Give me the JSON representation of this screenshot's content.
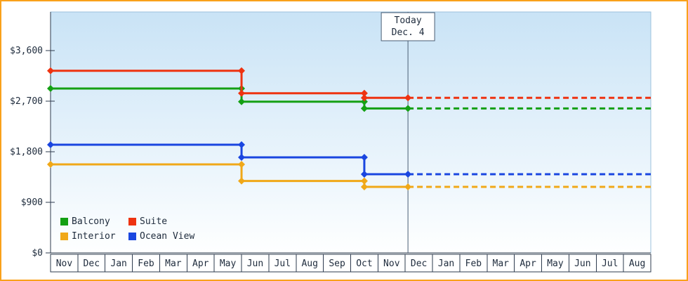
{
  "chart_data": {
    "type": "line",
    "title": "",
    "x_months": [
      "Nov",
      "Dec",
      "Jan",
      "Feb",
      "Mar",
      "Apr",
      "May",
      "Jun",
      "Jul",
      "Aug",
      "Sep",
      "Oct",
      "Nov",
      "Dec",
      "Jan",
      "Feb",
      "Mar",
      "Apr",
      "May",
      "Jun",
      "Jul",
      "Aug"
    ],
    "ylim": [
      0,
      3600
    ],
    "yticks": [
      {
        "value": 0,
        "label": "$0"
      },
      {
        "value": 900,
        "label": "$900"
      },
      {
        "value": 1800,
        "label": "$1,800"
      },
      {
        "value": 2700,
        "label": "$2,700"
      },
      {
        "value": 3600,
        "label": "$3,600"
      }
    ],
    "today": {
      "line1": "Today",
      "line2": "Dec. 4",
      "month_index": 13.1
    },
    "series": [
      {
        "name": "Balcony",
        "color": "#14A014",
        "points": [
          [
            0,
            2925
          ],
          [
            7,
            2925
          ],
          [
            7,
            2690
          ],
          [
            11.5,
            2690
          ],
          [
            11.5,
            2570
          ],
          [
            13.1,
            2570
          ]
        ],
        "forecast_price": 2570
      },
      {
        "name": "Suite",
        "color": "#EE3311",
        "points": [
          [
            0,
            3240
          ],
          [
            7,
            3240
          ],
          [
            7,
            2840
          ],
          [
            11.5,
            2840
          ],
          [
            11.5,
            2760
          ],
          [
            13.1,
            2760
          ]
        ],
        "forecast_price": 2760
      },
      {
        "name": "Interior",
        "color": "#F0A818",
        "points": [
          [
            0,
            1575
          ],
          [
            7,
            1575
          ],
          [
            7,
            1280
          ],
          [
            11.5,
            1280
          ],
          [
            11.5,
            1175
          ],
          [
            13.1,
            1175
          ]
        ],
        "forecast_price": 1175
      },
      {
        "name": "Ocean View",
        "color": "#1A46E0",
        "points": [
          [
            0,
            1925
          ],
          [
            7,
            1925
          ],
          [
            7,
            1700
          ],
          [
            11.5,
            1700
          ],
          [
            11.5,
            1400
          ],
          [
            13.1,
            1400
          ]
        ],
        "forecast_price": 1400
      }
    ],
    "legend_position": "bottom-left-inside",
    "grid": false
  },
  "colors": {
    "frame_border": "#F9A11B",
    "plot_top": "#C9E3F6",
    "plot_bottom": "#FEFFFF",
    "plot_border": "#9CC2DC",
    "axis": "#2E3B4E",
    "text": "#1E2B3C",
    "today_line": "#4A5E74"
  }
}
